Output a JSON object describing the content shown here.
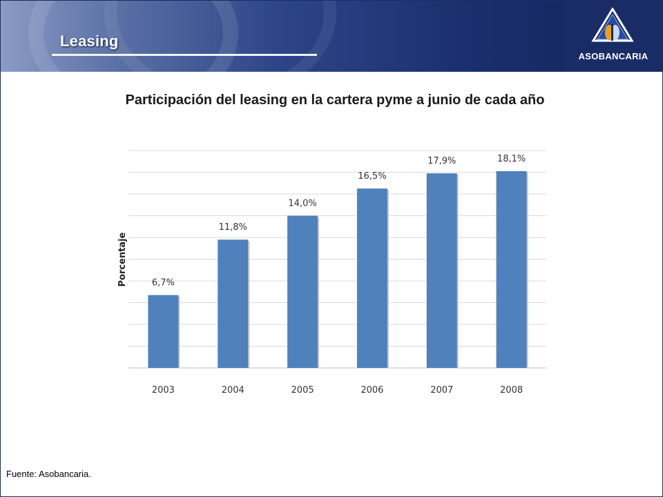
{
  "header": {
    "section_title": "Leasing",
    "logo_text": "ASOBANCARIA"
  },
  "colors": {
    "header_dark": "#13245c",
    "bar_fill": "#4f81bd",
    "gridline": "#d9d9d9"
  },
  "chart_data": {
    "type": "bar",
    "title": "Participación del leasing en la cartera pyme a junio de cada año",
    "xlabel": "",
    "ylabel": "Porcentaje",
    "categories": [
      "2003",
      "2004",
      "2005",
      "2006",
      "2007",
      "2008"
    ],
    "values": [
      6.7,
      11.8,
      14.0,
      16.5,
      17.9,
      18.1
    ],
    "data_labels": [
      "6,7%",
      "11,8%",
      "14,0%",
      "16,5%",
      "17,9%",
      "18,1%"
    ],
    "ylim": [
      0,
      20
    ],
    "grid": true,
    "legend": "none"
  },
  "footer": {
    "source": "Fuente: Asobancaria."
  }
}
